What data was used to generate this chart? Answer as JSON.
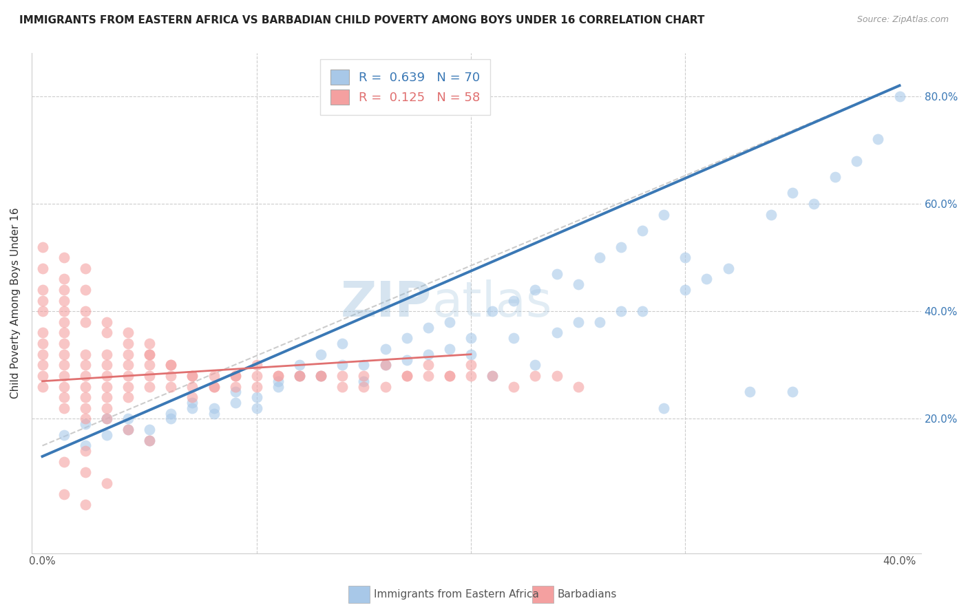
{
  "title": "IMMIGRANTS FROM EASTERN AFRICA VS BARBADIAN CHILD POVERTY AMONG BOYS UNDER 16 CORRELATION CHART",
  "source": "Source: ZipAtlas.com",
  "ylabel": "Child Poverty Among Boys Under 16",
  "xlim": [
    -0.005,
    0.41
  ],
  "ylim": [
    -0.05,
    0.88
  ],
  "R_blue": 0.639,
  "N_blue": 70,
  "R_pink": 0.125,
  "N_pink": 58,
  "blue_color": "#a8c8e8",
  "pink_color": "#f4a0a0",
  "blue_line_color": "#3a78b5",
  "pink_line_color": "#e07070",
  "watermark_zip": "ZIP",
  "watermark_atlas": "atlas",
  "legend_label_blue": "Immigrants from Eastern Africa",
  "legend_label_pink": "Barbadians",
  "blue_scatter_x": [
    0.01,
    0.02,
    0.03,
    0.04,
    0.05,
    0.06,
    0.07,
    0.08,
    0.09,
    0.1,
    0.11,
    0.12,
    0.13,
    0.14,
    0.15,
    0.16,
    0.17,
    0.18,
    0.19,
    0.2,
    0.21,
    0.22,
    0.23,
    0.24,
    0.25,
    0.26,
    0.27,
    0.28,
    0.29,
    0.3,
    0.31,
    0.32,
    0.33,
    0.34,
    0.35,
    0.36,
    0.37,
    0.38,
    0.39,
    0.4,
    0.02,
    0.03,
    0.04,
    0.05,
    0.06,
    0.07,
    0.08,
    0.09,
    0.1,
    0.11,
    0.12,
    0.13,
    0.14,
    0.15,
    0.16,
    0.17,
    0.18,
    0.19,
    0.2,
    0.21,
    0.22,
    0.23,
    0.24,
    0.25,
    0.26,
    0.27,
    0.28,
    0.29,
    0.3,
    0.35
  ],
  "blue_scatter_y": [
    0.17,
    0.19,
    0.2,
    0.2,
    0.18,
    0.21,
    0.22,
    0.21,
    0.23,
    0.24,
    0.26,
    0.28,
    0.28,
    0.3,
    0.27,
    0.3,
    0.31,
    0.32,
    0.33,
    0.32,
    0.28,
    0.35,
    0.3,
    0.36,
    0.38,
    0.38,
    0.4,
    0.4,
    0.22,
    0.44,
    0.46,
    0.48,
    0.25,
    0.58,
    0.62,
    0.6,
    0.65,
    0.68,
    0.72,
    0.8,
    0.15,
    0.17,
    0.18,
    0.16,
    0.2,
    0.23,
    0.22,
    0.25,
    0.22,
    0.27,
    0.3,
    0.32,
    0.34,
    0.3,
    0.33,
    0.35,
    0.37,
    0.38,
    0.35,
    0.4,
    0.42,
    0.44,
    0.47,
    0.45,
    0.5,
    0.52,
    0.55,
    0.58,
    0.5,
    0.25
  ],
  "pink_scatter_x": [
    0.0,
    0.0,
    0.0,
    0.0,
    0.0,
    0.0,
    0.01,
    0.01,
    0.01,
    0.01,
    0.01,
    0.01,
    0.01,
    0.01,
    0.02,
    0.02,
    0.02,
    0.02,
    0.02,
    0.02,
    0.02,
    0.03,
    0.03,
    0.03,
    0.03,
    0.03,
    0.03,
    0.04,
    0.04,
    0.04,
    0.04,
    0.04,
    0.05,
    0.05,
    0.05,
    0.05,
    0.06,
    0.06,
    0.06,
    0.07,
    0.07,
    0.07,
    0.08,
    0.08,
    0.09,
    0.09,
    0.1,
    0.1,
    0.11,
    0.12,
    0.13,
    0.14,
    0.15,
    0.16,
    0.17,
    0.18,
    0.19,
    0.2
  ],
  "pink_scatter_y": [
    0.26,
    0.28,
    0.3,
    0.32,
    0.34,
    0.36,
    0.22,
    0.24,
    0.26,
    0.28,
    0.3,
    0.32,
    0.34,
    0.36,
    0.2,
    0.22,
    0.24,
    0.26,
    0.28,
    0.3,
    0.32,
    0.22,
    0.24,
    0.26,
    0.28,
    0.3,
    0.32,
    0.24,
    0.26,
    0.28,
    0.3,
    0.32,
    0.26,
    0.28,
    0.3,
    0.32,
    0.26,
    0.28,
    0.3,
    0.24,
    0.26,
    0.28,
    0.26,
    0.28,
    0.26,
    0.28,
    0.26,
    0.28,
    0.28,
    0.28,
    0.28,
    0.26,
    0.28,
    0.3,
    0.28,
    0.3,
    0.28,
    0.3
  ],
  "pink_extra_x": [
    0.0,
    0.0,
    0.01,
    0.01,
    0.02,
    0.03,
    0.04,
    0.05,
    0.03,
    0.04,
    0.05,
    0.0,
    0.01,
    0.02,
    0.01,
    0.02,
    0.0,
    0.01,
    0.02,
    0.03,
    0.04,
    0.05,
    0.06,
    0.07,
    0.08,
    0.09,
    0.1,
    0.11,
    0.12,
    0.13,
    0.14,
    0.15,
    0.16,
    0.17,
    0.18,
    0.19,
    0.2,
    0.21,
    0.22,
    0.23,
    0.24,
    0.25,
    0.02,
    0.03,
    0.01,
    0.02,
    0.01,
    0.02,
    0.0,
    0.01
  ],
  "pink_extra_y": [
    0.42,
    0.44,
    0.4,
    0.44,
    0.4,
    0.38,
    0.36,
    0.34,
    0.2,
    0.18,
    0.16,
    0.48,
    0.46,
    0.44,
    0.38,
    0.38,
    0.52,
    0.5,
    0.48,
    0.36,
    0.34,
    0.32,
    0.3,
    0.28,
    0.26,
    0.28,
    0.3,
    0.28,
    0.28,
    0.28,
    0.28,
    0.26,
    0.26,
    0.28,
    0.28,
    0.28,
    0.28,
    0.28,
    0.26,
    0.28,
    0.28,
    0.26,
    0.1,
    0.08,
    0.12,
    0.14,
    0.06,
    0.04,
    0.4,
    0.42
  ]
}
